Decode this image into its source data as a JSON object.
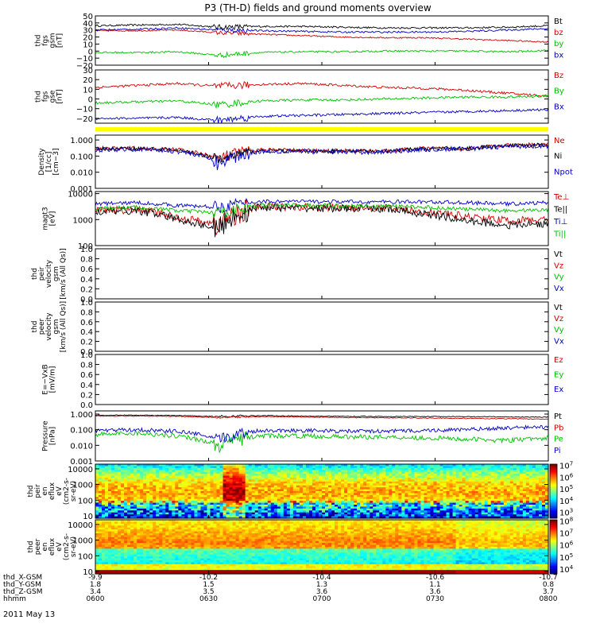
{
  "title": "P3 (TH-D) fields and ground moments overview",
  "chart_data": {
    "type": "line",
    "date": "2011 May 13",
    "time_axis": {
      "ticks": [
        "0600",
        "0630",
        "0700",
        "0730",
        "0800"
      ],
      "ephemeris": [
        {
          "name": "thd_X-GSM",
          "values": [
            "-9.9",
            "-10.2",
            "-10.4",
            "-10.6",
            "-10.7"
          ]
        },
        {
          "name": "thd_Y-GSM",
          "values": [
            "1.8",
            "1.5",
            "1.3",
            "1.1",
            "0.8"
          ]
        },
        {
          "name": "thd_Z-GSM",
          "values": [
            "3.4",
            "3.5",
            "3.6",
            "3.6",
            "3.7"
          ]
        },
        {
          "name": "hhmm",
          "values": [
            "0600",
            "0630",
            "0700",
            "0730",
            "0800"
          ]
        }
      ]
    },
    "panels": [
      {
        "id": "fgs-gsm",
        "ylabel_lines": [
          "thd",
          "fgs",
          "gsm",
          "[nT]"
        ],
        "ylim": [
          -20,
          50
        ],
        "yticks": [
          -20,
          -10,
          0,
          10,
          20,
          30,
          40,
          50
        ],
        "ytick_labels": [
          "−20",
          "−10",
          "0",
          "10",
          "20",
          "30",
          "40",
          "50"
        ],
        "series": [
          {
            "name": "Bt",
            "color": "#000000",
            "base": [
              36,
              37,
              38,
              34,
              35,
              35,
              34,
              33,
              33,
              33,
              34,
              36
            ],
            "noise": 2.5
          },
          {
            "name": "bz",
            "color": "#d00000",
            "base": [
              29,
              29,
              30,
              26,
              24,
              22,
              20,
              19,
              19,
              17,
              15,
              13
            ],
            "noise": 2
          },
          {
            "name": "by",
            "color": "#00c000",
            "base": [
              -2,
              -2,
              -1,
              -6,
              -2,
              -1,
              -1,
              0,
              0,
              0,
              -1,
              1
            ],
            "noise": 2.5
          },
          {
            "name": "bx",
            "color": "#0000c8",
            "base": [
              30,
              31,
              33,
              30,
              29,
              28,
              27,
              27,
              27,
              28,
              30,
              32
            ],
            "noise": 2.5
          }
        ]
      },
      {
        "id": "fgs-gse",
        "ylabel_lines": [
          "thd",
          "fgs",
          "gse",
          "[nT]"
        ],
        "ylim": [
          -25,
          30
        ],
        "yticks": [
          -20,
          -10,
          0,
          10,
          20,
          30
        ],
        "ytick_labels": [
          "−20",
          "−10",
          "0",
          "10",
          "20",
          "30"
        ],
        "series": [
          {
            "name": "Bz",
            "color": "#d00000",
            "base": [
              12,
              14,
              16,
              13,
              15,
              16,
              14,
              12,
              11,
              9,
              6,
              3
            ],
            "noise": 2.5
          },
          {
            "name": "By",
            "color": "#00c000",
            "base": [
              -4,
              -3,
              -2,
              -6,
              -2,
              -1,
              -1,
              0,
              1,
              2,
              2,
              3
            ],
            "noise": 2.5
          },
          {
            "name": "Bx",
            "color": "#0000c8",
            "base": [
              -20,
              -20,
              -19,
              -22,
              -18,
              -17,
              -16,
              -15,
              -14,
              -13,
              -12,
              -11
            ],
            "noise": 2.5
          }
        ]
      },
      {
        "id": "density",
        "ylabel_lines": [
          "Density",
          "[1/cc]",
          "[cm−3]"
        ],
        "log": true,
        "ylim": [
          0.001,
          2
        ],
        "yticks": [
          0.001,
          0.01,
          0.1,
          1
        ],
        "ytick_labels": [
          "0.001",
          "0.010",
          "0.100",
          "1.000"
        ],
        "series": [
          {
            "name": "Ne",
            "color": "#d00000",
            "base": [
              0.3,
              0.3,
              0.25,
              0.06,
              0.25,
              0.22,
              0.22,
              0.2,
              0.3,
              0.3,
              0.45,
              0.55
            ],
            "noise": 0.25
          },
          {
            "name": "Ni",
            "color": "#000000",
            "base": [
              0.28,
              0.3,
              0.22,
              0.05,
              0.22,
              0.2,
              0.2,
              0.2,
              0.28,
              0.3,
              0.42,
              0.5
            ],
            "noise": 0.25
          },
          {
            "name": "Npot",
            "color": "#0000c8",
            "base": [
              0.25,
              0.28,
              0.2,
              0.03,
              0.2,
              0.2,
              0.18,
              0.18,
              0.26,
              0.28,
              0.4,
              0.45
            ],
            "noise": 0.3
          }
        ]
      },
      {
        "id": "temperature",
        "ylabel_lines": [
          "magt3",
          "[eV]"
        ],
        "log": true,
        "ylim": [
          100,
          12000
        ],
        "yticks": [
          100,
          1000,
          10000
        ],
        "ytick_labels": [
          "100",
          "1000",
          "10000"
        ],
        "series": [
          {
            "name": "Te⊥",
            "color": "#d00000",
            "base": [
              2200,
              2400,
              1200,
              600,
              3200,
              3000,
              2900,
              2800,
              2000,
              1300,
              900,
              1000
            ],
            "noise": 0.3
          },
          {
            "name": "Te||",
            "color": "#000000",
            "base": [
              2000,
              2200,
              1000,
              400,
              3000,
              2800,
              2700,
              2600,
              1600,
              900,
              600,
              700
            ],
            "noise": 0.3
          },
          {
            "name": "Ti⊥",
            "color": "#0000c8",
            "base": [
              4000,
              4500,
              3500,
              3000,
              5000,
              5000,
              4800,
              4800,
              4800,
              4500,
              4000,
              4500
            ],
            "noise": 0.15
          },
          {
            "name": "Ti||",
            "color": "#00c000",
            "base": [
              2600,
              3000,
              2200,
              1800,
              3500,
              3600,
              3400,
              3300,
              3000,
              2500,
              2200,
              2400
            ],
            "noise": 0.15
          }
        ]
      },
      {
        "id": "peir-velocity",
        "ylabel_lines": [
          "thd",
          "peir",
          "velocity",
          "gsm",
          "[km/s (All Qs)]"
        ],
        "ylim": [
          0,
          1
        ],
        "yticks": [
          0,
          0.2,
          0.4,
          0.6,
          0.8,
          1
        ],
        "ytick_labels": [
          "0.0",
          "0.2",
          "0.4",
          "0.6",
          "0.8",
          "1.0"
        ],
        "series": [
          {
            "name": "Vt",
            "color": "#000000"
          },
          {
            "name": "Vz",
            "color": "#d00000"
          },
          {
            "name": "Vy",
            "color": "#00c000"
          },
          {
            "name": "Vx",
            "color": "#0000c8"
          }
        ]
      },
      {
        "id": "peer-velocity",
        "ylabel_lines": [
          "thd",
          "peer",
          "velocity",
          "gsm",
          "[km/s (All Qs)]"
        ],
        "ylim": [
          0,
          1
        ],
        "yticks": [
          0,
          0.2,
          0.4,
          0.6,
          0.8,
          1
        ],
        "ytick_labels": [
          "0.0",
          "0.2",
          "0.4",
          "0.6",
          "0.8",
          "1.0"
        ],
        "series": [
          {
            "name": "Vt",
            "color": "#000000"
          },
          {
            "name": "Vz",
            "color": "#d00000"
          },
          {
            "name": "Vy",
            "color": "#00c000"
          },
          {
            "name": "Vx",
            "color": "#0000c8"
          }
        ]
      },
      {
        "id": "efield",
        "ylabel_lines": [
          "E=−VxB",
          "[mV/m]"
        ],
        "ylim": [
          0,
          1
        ],
        "yticks": [
          0,
          0.2,
          0.4,
          0.6,
          0.8,
          1
        ],
        "ytick_labels": [
          "0.0",
          "0.2",
          "0.4",
          "0.6",
          "0.8",
          "1.0"
        ],
        "series": [
          {
            "name": "Ez",
            "color": "#d00000"
          },
          {
            "name": "Ey",
            "color": "#00c000"
          },
          {
            "name": "Ex",
            "color": "#0000c8"
          }
        ]
      },
      {
        "id": "pressure",
        "ylabel_lines": [
          "Pressure",
          "[nPa]"
        ],
        "log": true,
        "ylim": [
          0.001,
          1.6
        ],
        "yticks": [
          0.001,
          0.01,
          0.1,
          1
        ],
        "ytick_labels": [
          "0.001",
          "0.010",
          "0.100",
          "1.000"
        ],
        "series": [
          {
            "name": "Pt",
            "color": "#000000",
            "base": [
              0.85,
              0.85,
              0.8,
              0.7,
              0.8,
              0.75,
              0.72,
              0.7,
              0.7,
              0.68,
              0.66,
              0.64
            ],
            "noise": 0.05
          },
          {
            "name": "Pb",
            "color": "#d00000",
            "base": [
              0.75,
              0.75,
              0.72,
              0.6,
              0.7,
              0.65,
              0.6,
              0.58,
              0.56,
              0.53,
              0.5,
              0.48
            ],
            "noise": 0.05
          },
          {
            "name": "Pe",
            "color": "#00c000",
            "base": [
              0.05,
              0.06,
              0.04,
              0.008,
              0.04,
              0.04,
              0.035,
              0.035,
              0.03,
              0.025,
              0.02,
              0.03
            ],
            "noise": 0.3
          },
          {
            "name": "Pi",
            "color": "#0000c8",
            "base": [
              0.09,
              0.1,
              0.08,
              0.02,
              0.09,
              0.09,
              0.08,
              0.08,
              0.09,
              0.1,
              0.13,
              0.15
            ],
            "noise": 0.25
          }
        ]
      },
      {
        "id": "peir-spectrogram",
        "type": "heatmap",
        "ylabel_lines": [
          "thd",
          "peir",
          "en",
          "eflux",
          "eV",
          "(cm2-s-",
          "sr-eV)"
        ],
        "log": true,
        "ylim": [
          7,
          20000
        ],
        "yticks": [
          10,
          100,
          1000,
          10000
        ],
        "ytick_labels": [
          "10",
          "100",
          "1000",
          "10000"
        ],
        "colorbar": {
          "min_exp": 2.5,
          "max_exp": 7.1,
          "tick_exps": [
            3,
            4,
            5,
            6,
            7
          ],
          "tick_labels": [
            "3",
            "4",
            "5",
            "6",
            "7"
          ]
        }
      },
      {
        "id": "peer-spectrogram",
        "type": "heatmap",
        "ylabel_lines": [
          "thd",
          "peer",
          "en",
          "eflux",
          "eV",
          "(cm2-s-",
          "sr-eV)"
        ],
        "log": true,
        "ylim": [
          7,
          20000
        ],
        "yticks": [
          10,
          100,
          1000,
          10000
        ],
        "ytick_labels": [
          "10",
          "100",
          "1000",
          "10000"
        ],
        "colorbar": {
          "min_exp": 3.6,
          "max_exp": 8.1,
          "tick_exps": [
            4,
            5,
            6,
            7,
            8
          ],
          "tick_labels": [
            "4",
            "5",
            "6",
            "7",
            "8"
          ]
        }
      }
    ]
  }
}
